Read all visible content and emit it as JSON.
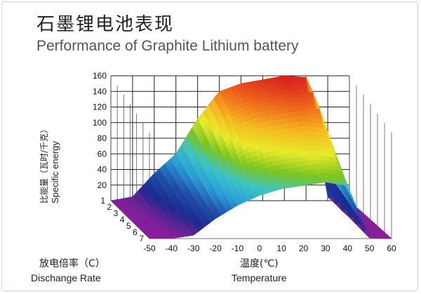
{
  "title_cn": "石墨锂电池表现",
  "title_en": "Performance of Graphite Lithium battery",
  "chart_data": {
    "type": "surface",
    "title": "Performance of Graphite Lithium battery",
    "ylabel_cn": "比能量（瓦时/千克）",
    "ylabel_en": "Specific energy",
    "depth_label_cn": "放电倍率（C）",
    "depth_label_en": "Dischange Rate",
    "xlabel_cn": "温度(℃)",
    "xlabel_en": "Temperature",
    "temperature": [
      -50,
      -40,
      -30,
      -20,
      -10,
      0,
      10,
      20,
      30,
      40,
      50,
      60
    ],
    "discharge_rate": [
      1,
      2,
      3,
      4,
      5,
      6,
      7
    ],
    "z_ticks": [
      20,
      40,
      60,
      80,
      100,
      120,
      140,
      160
    ],
    "zlim": [
      0,
      160
    ],
    "values": [
      [
        0,
        5,
        35,
        60,
        105,
        140,
        150,
        155,
        160,
        158,
        5,
        0
      ],
      [
        0,
        5,
        30,
        55,
        100,
        135,
        145,
        150,
        155,
        150,
        5,
        0
      ],
      [
        0,
        4,
        25,
        50,
        90,
        125,
        135,
        140,
        145,
        140,
        4,
        0
      ],
      [
        0,
        3,
        20,
        45,
        80,
        110,
        120,
        125,
        130,
        125,
        4,
        0
      ],
      [
        0,
        2,
        15,
        40,
        70,
        95,
        105,
        110,
        115,
        110,
        3,
        0
      ],
      [
        0,
        1,
        10,
        35,
        60,
        80,
        90,
        95,
        100,
        95,
        2,
        0
      ],
      [
        0,
        0,
        5,
        30,
        50,
        65,
        75,
        80,
        85,
        80,
        1,
        0
      ]
    ],
    "colormap": [
      "#8a1f9a",
      "#1a2b8f",
      "#1f4fa8",
      "#2a9fd6",
      "#3cc4c4",
      "#7cc420",
      "#e9ea2a",
      "#f5b820",
      "#ef6a1c",
      "#d81e1e"
    ],
    "grid": true
  }
}
